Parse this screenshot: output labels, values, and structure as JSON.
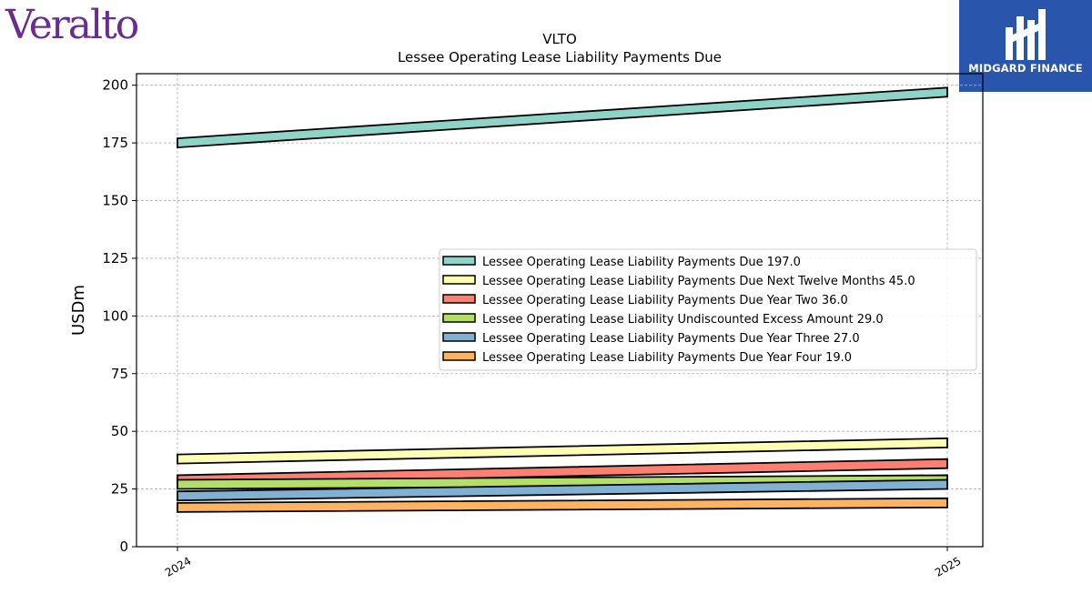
{
  "brand": {
    "logo_text": "Veralto",
    "badge_text": "MIDGARD FINANCE"
  },
  "chart_data": {
    "type": "line",
    "title": "VLTO",
    "subtitle": "Lessee Operating Lease Liability Payments Due",
    "xlabel": "",
    "ylabel": "USDm",
    "categories": [
      "2024",
      "2025"
    ],
    "ylim": [
      0,
      205
    ],
    "yticks": [
      0,
      25,
      50,
      75,
      100,
      125,
      150,
      175,
      200
    ],
    "grid": true,
    "legend_position": "center-right",
    "series": [
      {
        "name": "Lessee Operating Lease Liability Payments Due",
        "legend_value": "197.0",
        "values": [
          175,
          197
        ],
        "color": "#8dd3c7"
      },
      {
        "name": "Lessee Operating Lease Liability Payments Due Next Twelve Months",
        "legend_value": "45.0",
        "values": [
          38,
          45
        ],
        "color": "#ffffb3"
      },
      {
        "name": "Lessee Operating Lease Liability Payments Due Year Two",
        "legend_value": "36.0",
        "values": [
          29,
          36
        ],
        "color": "#fb8072"
      },
      {
        "name": "Lessee Operating Lease Liability Undiscounted Excess Amount",
        "legend_value": "29.0",
        "values": [
          27,
          29
        ],
        "color": "#b3de69"
      },
      {
        "name": "Lessee Operating Lease Liability Payments Due Year Three",
        "legend_value": "27.0",
        "values": [
          22,
          27
        ],
        "color": "#80b1d3"
      },
      {
        "name": "Lessee Operating Lease Liability Payments Due Year Four",
        "legend_value": "19.0",
        "values": [
          17,
          19
        ],
        "color": "#fdb462"
      }
    ]
  }
}
